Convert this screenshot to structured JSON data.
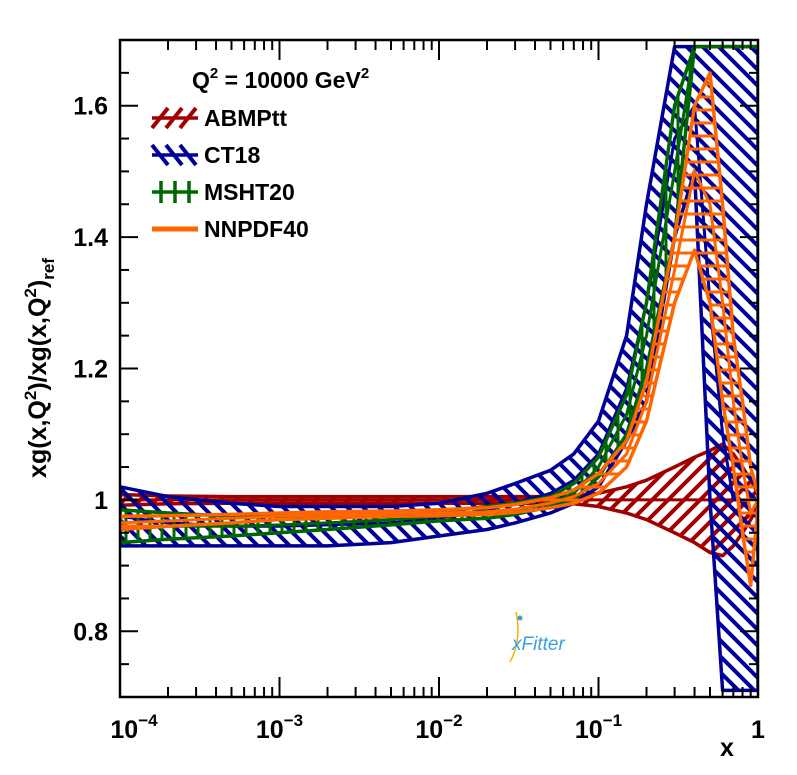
{
  "chart_data": {
    "type": "area",
    "title": "",
    "xlabel": "x",
    "ylabel": "xg(x,Q2)/xg(x,Q2)ref",
    "xscale": "log",
    "xlim": [
      0.0001,
      1
    ],
    "ylim": [
      0.7,
      1.7
    ],
    "annotation": "Q2 = 10000 GeV2",
    "x_ticks": [
      {
        "value": 0.0001,
        "base": "10",
        "exp": "−4"
      },
      {
        "value": 0.001,
        "base": "10",
        "exp": "−3"
      },
      {
        "value": 0.01,
        "base": "10",
        "exp": "−2"
      },
      {
        "value": 0.1,
        "base": "10",
        "exp": "−1"
      },
      {
        "value": 1,
        "base": "1",
        "exp": ""
      }
    ],
    "y_ticks": [
      {
        "value": 0.8,
        "label": "0.8"
      },
      {
        "value": 1.0,
        "label": "1"
      },
      {
        "value": 1.2,
        "label": "1.2"
      },
      {
        "value": 1.4,
        "label": "1.4"
      },
      {
        "value": 1.6,
        "label": "1.6"
      }
    ],
    "x": [
      0.0001,
      0.0002,
      0.0005,
      0.001,
      0.002,
      0.005,
      0.01,
      0.02,
      0.03,
      0.05,
      0.07,
      0.1,
      0.15,
      0.2,
      0.3,
      0.4,
      0.5,
      0.6,
      0.7,
      0.8,
      0.9,
      1.0
    ],
    "series": [
      {
        "name": "ABMPtt",
        "color": "#a00000",
        "hatch": "diag-up",
        "central": [
          1.0,
          1.0,
          1.0,
          1.0,
          1.0,
          1.0,
          1.0,
          1.0,
          1.0,
          1.0,
          1.0,
          1.0,
          1.0,
          1.0,
          1.0,
          1.0,
          1.0,
          1.0,
          1.0,
          1.0,
          1.0,
          1.0
        ],
        "upper": [
          1.008,
          1.006,
          1.005,
          1.005,
          1.005,
          1.005,
          1.005,
          1.005,
          1.005,
          1.005,
          1.006,
          1.01,
          1.02,
          1.03,
          1.05,
          1.065,
          1.075,
          1.085,
          1.07,
          1.05,
          1.03,
          1.01
        ],
        "lower": [
          0.992,
          0.994,
          0.995,
          0.995,
          0.995,
          0.995,
          0.995,
          0.995,
          0.995,
          0.995,
          0.994,
          0.99,
          0.98,
          0.97,
          0.95,
          0.935,
          0.92,
          0.915,
          0.93,
          0.95,
          0.97,
          0.99
        ]
      },
      {
        "name": "CT18",
        "color": "#000099",
        "hatch": "diag-down",
        "central": [
          0.975,
          0.965,
          0.96,
          0.96,
          0.962,
          0.965,
          0.972,
          0.985,
          0.995,
          1.01,
          1.03,
          1.07,
          1.17,
          1.3,
          1.55,
          1.6,
          1.3,
          1.1,
          1.0,
          1.0,
          1.0,
          1.0
        ],
        "upper": [
          1.02,
          1.005,
          0.995,
          0.99,
          0.99,
          0.99,
          0.995,
          1.01,
          1.025,
          1.045,
          1.07,
          1.12,
          1.25,
          1.45,
          1.69,
          1.69,
          1.69,
          1.69,
          1.69,
          1.69,
          1.69,
          1.69
        ],
        "lower": [
          0.93,
          0.93,
          0.93,
          0.93,
          0.93,
          0.935,
          0.945,
          0.955,
          0.965,
          0.98,
          0.995,
          1.02,
          1.09,
          1.15,
          1.4,
          1.5,
          1.0,
          0.71,
          0.71,
          0.71,
          0.71,
          0.71
        ]
      },
      {
        "name": "MSHT20",
        "color": "#006600",
        "hatch": "cross",
        "central": [
          0.96,
          0.96,
          0.96,
          0.962,
          0.965,
          0.97,
          0.975,
          0.98,
          0.985,
          0.995,
          1.01,
          1.05,
          1.13,
          1.25,
          1.5,
          1.69,
          1.69,
          1.69,
          1.69,
          1.69,
          1.69,
          1.69
        ],
        "upper": [
          0.985,
          0.98,
          0.975,
          0.975,
          0.975,
          0.978,
          0.982,
          0.99,
          0.995,
          1.005,
          1.025,
          1.065,
          1.16,
          1.3,
          1.6,
          1.69,
          1.69,
          1.69,
          1.69,
          1.69,
          1.69,
          1.69
        ],
        "lower": [
          0.935,
          0.94,
          0.945,
          0.95,
          0.955,
          0.962,
          0.968,
          0.972,
          0.978,
          0.99,
          1.0,
          1.035,
          1.1,
          1.2,
          1.4,
          1.69,
          1.69,
          1.69,
          1.69,
          1.69,
          1.69,
          1.69
        ]
      },
      {
        "name": "NNPDF40",
        "color": "#ff6600",
        "hatch": "horizontal",
        "central": [
          0.965,
          0.968,
          0.972,
          0.975,
          0.977,
          0.979,
          0.98,
          0.982,
          0.986,
          0.995,
          1.005,
          1.025,
          1.07,
          1.15,
          1.35,
          1.5,
          1.45,
          1.3,
          1.15,
          1.05,
          0.98,
          1.0
        ],
        "upper": [
          0.975,
          0.976,
          0.978,
          0.98,
          0.982,
          0.983,
          0.985,
          0.988,
          0.993,
          1.003,
          1.015,
          1.04,
          1.09,
          1.18,
          1.4,
          1.6,
          1.65,
          1.45,
          1.25,
          1.15,
          1.05,
          1.01
        ],
        "lower": [
          0.955,
          0.96,
          0.965,
          0.97,
          0.972,
          0.975,
          0.976,
          0.978,
          0.981,
          0.988,
          0.995,
          1.01,
          1.05,
          1.12,
          1.3,
          1.38,
          1.3,
          1.15,
          1.05,
          0.95,
          0.87,
          0.99
        ]
      }
    ],
    "legend": {
      "position": "top-left"
    },
    "logo": "xFitter"
  }
}
